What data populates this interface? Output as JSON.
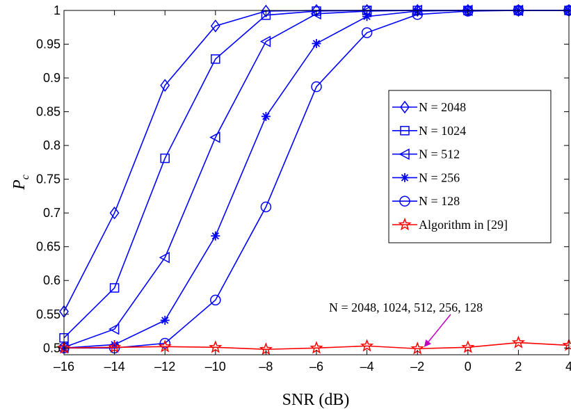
{
  "chart_data": {
    "type": "line",
    "xlabel": "SNR (dB)",
    "ylabel_main": "P",
    "ylabel_sub": "c",
    "xlim": [
      -16,
      4
    ],
    "ylim": [
      0.49,
      1.0
    ],
    "xticks": [
      -16,
      -14,
      -12,
      -10,
      -8,
      -6,
      -4,
      -2,
      0,
      2,
      4
    ],
    "xtick_labels": [
      "–16",
      "–14",
      "–12",
      "–10",
      "–8",
      "–6",
      "–4",
      "–2",
      "0",
      "2",
      "4"
    ],
    "yticks": [
      0.5,
      0.55,
      0.6,
      0.65,
      0.7,
      0.75,
      0.8,
      0.85,
      0.9,
      0.95,
      1
    ],
    "ytick_labels": [
      "0.5",
      "0.55",
      "0.6",
      "0.65",
      "0.7",
      "0.75",
      "0.8",
      "0.85",
      "0.9",
      "0.95",
      "1"
    ],
    "grid": false,
    "legend_position": "right",
    "x": [
      -16,
      -14,
      -12,
      -10,
      -8,
      -6,
      -4,
      -2,
      0,
      2,
      4
    ],
    "series": [
      {
        "name": "N = 2048",
        "marker": "diamond",
        "color": "#0000ff",
        "values": [
          0.554,
          0.7,
          0.889,
          0.977,
          0.999,
          1.0,
          1.0,
          1.0,
          1.0,
          1.0,
          1.0
        ]
      },
      {
        "name": "N = 1024",
        "marker": "square",
        "color": "#0000ff",
        "values": [
          0.515,
          0.589,
          0.781,
          0.928,
          0.993,
          0.999,
          1.0,
          1.0,
          1.0,
          1.0,
          1.0
        ]
      },
      {
        "name": "N = 512",
        "marker": "triangle-left",
        "color": "#0000ff",
        "values": [
          0.501,
          0.528,
          0.634,
          0.812,
          0.954,
          0.995,
          0.999,
          1.0,
          1.0,
          1.0,
          1.0
        ]
      },
      {
        "name": "N = 256",
        "marker": "asterisk",
        "color": "#0000ff",
        "values": [
          0.5,
          0.505,
          0.541,
          0.666,
          0.843,
          0.951,
          0.991,
          0.999,
          1.0,
          1.0,
          1.0
        ]
      },
      {
        "name": "N = 128",
        "marker": "circle",
        "color": "#0000ff",
        "values": [
          0.5,
          0.5,
          0.507,
          0.571,
          0.709,
          0.887,
          0.967,
          0.994,
          0.999,
          1.0,
          1.0
        ]
      },
      {
        "name": "Algorithm in [29]",
        "marker": "star",
        "color": "#ff0000",
        "values": [
          0.5,
          0.501,
          0.502,
          0.501,
          0.498,
          0.5,
          0.503,
          0.499,
          0.501,
          0.508,
          0.504
        ]
      }
    ],
    "annotation": {
      "text": "N = 2048, 1024, 512, 256, 128",
      "arrow_color": "#c000c0",
      "arrow_target": {
        "x": -1.7,
        "y": 0.503
      }
    }
  }
}
